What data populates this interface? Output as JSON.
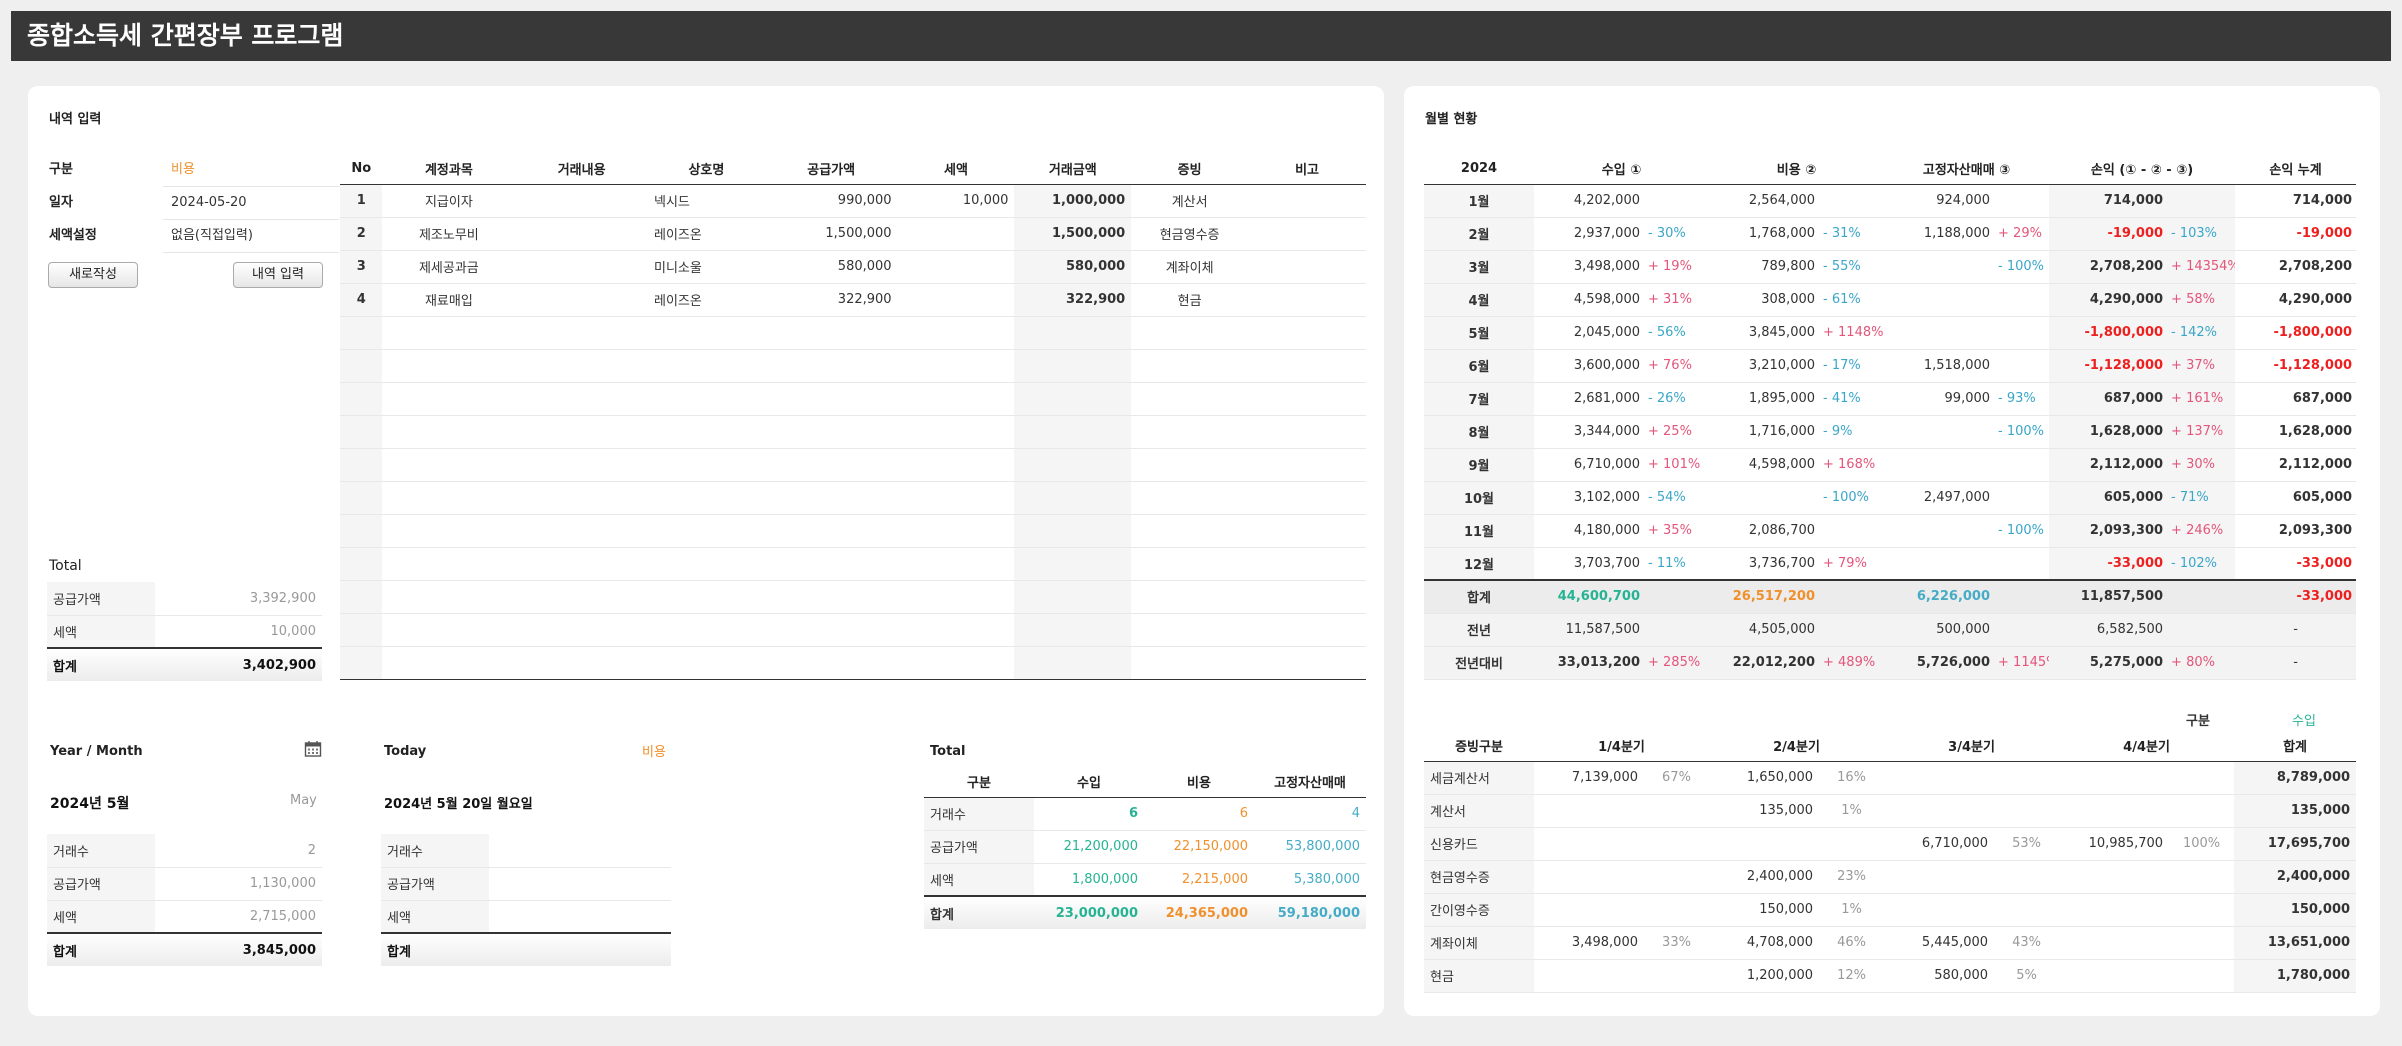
{
  "app_title": "종합소득세 간편장부 프로그램",
  "entry": {
    "section_title": "내역 입력",
    "fields": [
      {
        "label": "구분",
        "value": "비용"
      },
      {
        "label": "일자",
        "value": "2024-05-20"
      },
      {
        "label": "세액설정",
        "value": "없음(직접입력)"
      }
    ],
    "new_button": "새로작성",
    "submit_button": "내역 입력",
    "total_title": "Total",
    "totals": [
      {
        "label": "공급가액",
        "value": "3,392,900"
      },
      {
        "label": "세액",
        "value": "10,000"
      }
    ],
    "total_sum": {
      "label": "합계",
      "value": "3,402,900"
    }
  },
  "ledger": {
    "headers": [
      "No",
      "계정과목",
      "거래내용",
      "상호명",
      "공급가액",
      "세액",
      "거래금액",
      "증빙",
      "비고"
    ],
    "rows": [
      {
        "no": "1",
        "account": "지급이자",
        "desc": "",
        "vendor": "넥시드",
        "supply": "990,000",
        "tax": "10,000",
        "amount": "1,000,000",
        "evidence": "계산서",
        "note": ""
      },
      {
        "no": "2",
        "account": "제조노무비",
        "desc": "",
        "vendor": "레이즈온",
        "supply": "1,500,000",
        "tax": "",
        "amount": "1,500,000",
        "evidence": "현금영수증",
        "note": ""
      },
      {
        "no": "3",
        "account": "제세공과금",
        "desc": "",
        "vendor": "미니소울",
        "supply": "580,000",
        "tax": "",
        "amount": "580,000",
        "evidence": "계좌이체",
        "note": ""
      },
      {
        "no": "4",
        "account": "재료매입",
        "desc": "",
        "vendor": "레이즈온",
        "supply": "322,900",
        "tax": "",
        "amount": "322,900",
        "evidence": "현금",
        "note": ""
      }
    ],
    "empty_rows": 11
  },
  "year_month": {
    "title": "Year / Month",
    "icon": "calendar-icon",
    "date": "2024년 5월",
    "month_en": "May",
    "rows": [
      {
        "label": "거래수",
        "value": "2"
      },
      {
        "label": "공급가액",
        "value": "1,130,000"
      },
      {
        "label": "세액",
        "value": "2,715,000"
      }
    ],
    "sum": {
      "label": "합계",
      "value": "3,845,000"
    }
  },
  "today": {
    "title": "Today",
    "type": "비용",
    "date": "2024년 5월 20일 월요일",
    "rows": [
      {
        "label": "거래수",
        "value": ""
      },
      {
        "label": "공급가액",
        "value": ""
      },
      {
        "label": "세액",
        "value": ""
      }
    ],
    "sum": {
      "label": "합계",
      "value": ""
    }
  },
  "total_summary": {
    "title": "Total",
    "headers": [
      "구분",
      "수입",
      "비용",
      "고정자산매매"
    ],
    "rows": [
      {
        "label": "거래수",
        "income": "6",
        "expense": "6",
        "asset": "4"
      },
      {
        "label": "공급가액",
        "income": "21,200,000",
        "expense": "22,150,000",
        "asset": "53,800,000"
      },
      {
        "label": "세액",
        "income": "1,800,000",
        "expense": "2,215,000",
        "asset": "5,380,000"
      }
    ],
    "sum": {
      "label": "합계",
      "income": "23,000,000",
      "expense": "24,365,000",
      "asset": "59,180,000"
    }
  },
  "monthly": {
    "title": "월별 현황",
    "headers": [
      "2024",
      "수입 ①",
      "비용 ②",
      "고정자산매매 ③",
      "손익 (① - ② - ③)",
      "손익 누계"
    ],
    "rows": [
      {
        "m": "1월",
        "inc": "4,202,000",
        "incp": "",
        "exp": "2,564,000",
        "expp": "",
        "ast": "924,000",
        "astp": "",
        "pl": "714,000",
        "plp": "",
        "cum": "714,000"
      },
      {
        "m": "2월",
        "inc": "2,937,000",
        "incp": "- 30%",
        "exp": "1,768,000",
        "expp": "- 31%",
        "ast": "1,188,000",
        "astp": "+ 29%",
        "pl": "-19,000",
        "plp": "- 103%",
        "cum": "-19,000"
      },
      {
        "m": "3월",
        "inc": "3,498,000",
        "incp": "+ 19%",
        "exp": "789,800",
        "expp": "- 55%",
        "ast": "",
        "astp": "- 100%",
        "pl": "2,708,200",
        "plp": "+ 14354%",
        "cum": "2,708,200"
      },
      {
        "m": "4월",
        "inc": "4,598,000",
        "incp": "+ 31%",
        "exp": "308,000",
        "expp": "- 61%",
        "ast": "",
        "astp": "",
        "pl": "4,290,000",
        "plp": "+ 58%",
        "cum": "4,290,000"
      },
      {
        "m": "5월",
        "inc": "2,045,000",
        "incp": "- 56%",
        "exp": "3,845,000",
        "expp": "+ 1148%",
        "ast": "",
        "astp": "",
        "pl": "-1,800,000",
        "plp": "- 142%",
        "cum": "-1,800,000"
      },
      {
        "m": "6월",
        "inc": "3,600,000",
        "incp": "+ 76%",
        "exp": "3,210,000",
        "expp": "- 17%",
        "ast": "1,518,000",
        "astp": "",
        "pl": "-1,128,000",
        "plp": "+ 37%",
        "cum": "-1,128,000"
      },
      {
        "m": "7월",
        "inc": "2,681,000",
        "incp": "- 26%",
        "exp": "1,895,000",
        "expp": "- 41%",
        "ast": "99,000",
        "astp": "- 93%",
        "pl": "687,000",
        "plp": "+ 161%",
        "cum": "687,000"
      },
      {
        "m": "8월",
        "inc": "3,344,000",
        "incp": "+ 25%",
        "exp": "1,716,000",
        "expp": "- 9%",
        "ast": "",
        "astp": "- 100%",
        "pl": "1,628,000",
        "plp": "+ 137%",
        "cum": "1,628,000"
      },
      {
        "m": "9월",
        "inc": "6,710,000",
        "incp": "+ 101%",
        "exp": "4,598,000",
        "expp": "+ 168%",
        "ast": "",
        "astp": "",
        "pl": "2,112,000",
        "plp": "+ 30%",
        "cum": "2,112,000"
      },
      {
        "m": "10월",
        "inc": "3,102,000",
        "incp": "- 54%",
        "exp": "",
        "expp": "- 100%",
        "ast": "2,497,000",
        "astp": "",
        "pl": "605,000",
        "plp": "- 71%",
        "cum": "605,000"
      },
      {
        "m": "11월",
        "inc": "4,180,000",
        "incp": "+ 35%",
        "exp": "2,086,700",
        "expp": "",
        "ast": "",
        "astp": "- 100%",
        "pl": "2,093,300",
        "plp": "+ 246%",
        "cum": "2,093,300"
      },
      {
        "m": "12월",
        "inc": "3,703,700",
        "incp": "- 11%",
        "exp": "3,736,700",
        "expp": "+ 79%",
        "ast": "",
        "astp": "",
        "pl": "-33,000",
        "plp": "- 102%",
        "cum": "-33,000"
      }
    ],
    "sum": {
      "m": "합계",
      "inc": "44,600,700",
      "exp": "26,517,200",
      "ast": "6,226,000",
      "pl": "11,857,500",
      "cum": "-33,000"
    },
    "prev": {
      "m": "전년",
      "inc": "11,587,500",
      "exp": "4,505,000",
      "ast": "500,000",
      "pl": "6,582,500",
      "cum": "-"
    },
    "cmp": {
      "m": "전년대비",
      "inc": "33,013,200",
      "incp": "+ 285%",
      "exp": "22,012,200",
      "expp": "+ 489%",
      "ast": "5,726,000",
      "astp": "+ 1145%",
      "pl": "5,275,000",
      "plp": "+ 80%",
      "cum": "-"
    }
  },
  "evidence": {
    "filter_label": "구분",
    "filter_value": "수입",
    "headers": [
      "증빙구분",
      "1/4분기",
      "2/4분기",
      "3/4분기",
      "4/4분기",
      "합계"
    ],
    "rows": [
      {
        "name": "세금계산서",
        "q1": "7,139,000",
        "q1p": "67%",
        "q2": "1,650,000",
        "q2p": "16%",
        "q3": "",
        "q3p": "",
        "q4": "",
        "q4p": "",
        "total": "8,789,000"
      },
      {
        "name": "계산서",
        "q1": "",
        "q1p": "",
        "q2": "135,000",
        "q2p": "1%",
        "q3": "",
        "q3p": "",
        "q4": "",
        "q4p": "",
        "total": "135,000"
      },
      {
        "name": "신용카드",
        "q1": "",
        "q1p": "",
        "q2": "",
        "q2p": "",
        "q3": "6,710,000",
        "q3p": "53%",
        "q4": "10,985,700",
        "q4p": "100%",
        "total": "17,695,700"
      },
      {
        "name": "현금영수증",
        "q1": "",
        "q1p": "",
        "q2": "2,400,000",
        "q2p": "23%",
        "q3": "",
        "q3p": "",
        "q4": "",
        "q4p": "",
        "total": "2,400,000"
      },
      {
        "name": "간이영수증",
        "q1": "",
        "q1p": "",
        "q2": "150,000",
        "q2p": "1%",
        "q3": "",
        "q3p": "",
        "q4": "",
        "q4p": "",
        "total": "150,000"
      },
      {
        "name": "계좌이체",
        "q1": "3,498,000",
        "q1p": "33%",
        "q2": "4,708,000",
        "q2p": "46%",
        "q3": "5,445,000",
        "q3p": "43%",
        "q4": "",
        "q4p": "",
        "total": "13,651,000"
      },
      {
        "name": "현금",
        "q1": "",
        "q1p": "",
        "q2": "1,200,000",
        "q2p": "12%",
        "q3": "580,000",
        "q3p": "5%",
        "q4": "",
        "q4p": "",
        "total": "1,780,000"
      }
    ]
  },
  "colors": {
    "title_bar": "#383838",
    "expense": "#f0902d",
    "income": "#26b394",
    "asset": "#45acc6",
    "negative": "#ee1f1f"
  }
}
